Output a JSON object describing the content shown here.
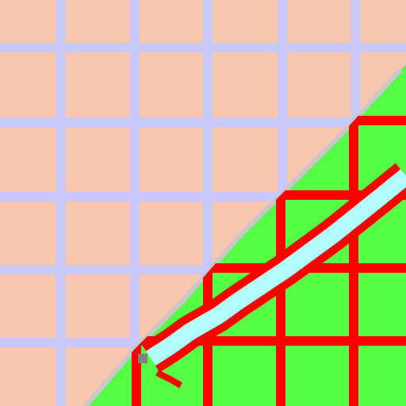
{
  "map": {
    "palette": {
      "terrain_tan": "#f7c6ae",
      "grid_lavender": "#c8c8fa",
      "region_green": "#55ff44",
      "boundary_red": "#ff0000",
      "river_cyan": "#b2fcfc",
      "edge_gray": "#c8c8c8",
      "marker_gray": "#808080"
    },
    "layers": [
      "tan-terrain",
      "lavender-grid",
      "green-region",
      "red-grid",
      "river",
      "marker"
    ]
  }
}
